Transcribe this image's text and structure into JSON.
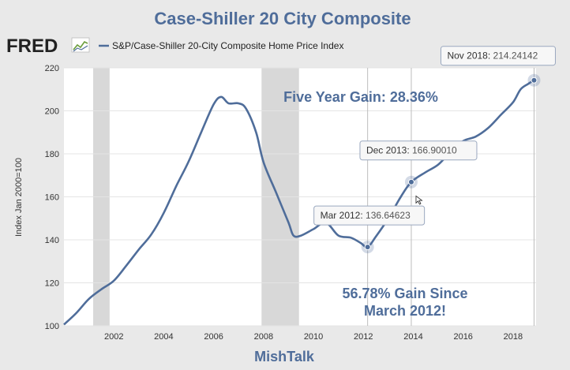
{
  "title": "Case-Shiller 20 City Composite",
  "footer": "MishTalk",
  "logo": "FRED",
  "legend_label": "S&P/Case-Shiller 20-City Composite Home Price Index",
  "ylabel": "Index Jan 2000=100",
  "annotations": {
    "five_year": "Five Year Gain: 28.36%",
    "gain_line1": "56.78% Gain Since",
    "gain_line2": "March 2012!"
  },
  "colors": {
    "line": "#4f6d9a",
    "recession": "#d8d8d8",
    "plot_bg": "#ffffff",
    "page_bg": "#e9e9e9"
  },
  "chart_data": {
    "type": "line",
    "title": "Case-Shiller 20 City Composite",
    "ylabel": "Index Jan 2000=100",
    "xlabel": "",
    "xlim": [
      2000.0,
      2018.92
    ],
    "ylim": [
      100,
      220
    ],
    "x_ticks": [
      2002,
      2004,
      2006,
      2008,
      2010,
      2012,
      2014,
      2016,
      2018
    ],
    "y_ticks": [
      100,
      120,
      140,
      160,
      180,
      200,
      220
    ],
    "grid": "horizontal",
    "legend": "top-left",
    "recessions": [
      [
        2001.17,
        2001.83
      ],
      [
        2007.92,
        2009.42
      ]
    ],
    "series": [
      {
        "name": "S&P/Case-Shiller 20-City Composite Home Price Index",
        "x": [
          2000.0,
          2000.5,
          2001.0,
          2001.5,
          2002.0,
          2002.5,
          2003.0,
          2003.5,
          2004.0,
          2004.5,
          2005.0,
          2005.5,
          2006.0,
          2006.3,
          2006.6,
          2007.0,
          2007.3,
          2007.7,
          2008.0,
          2008.5,
          2009.0,
          2009.2,
          2009.5,
          2010.0,
          2010.5,
          2011.0,
          2011.5,
          2011.9,
          2012.17,
          2012.5,
          2013.0,
          2013.5,
          2013.92,
          2014.5,
          2015.0,
          2015.5,
          2016.0,
          2016.5,
          2017.0,
          2017.5,
          2018.0,
          2018.3,
          2018.6,
          2018.84
        ],
        "values": [
          100.6,
          106,
          112.5,
          117,
          121,
          128,
          135.5,
          142.5,
          152.5,
          165,
          176.5,
          190,
          203,
          206.5,
          203.5,
          203.5,
          201,
          190,
          176,
          162,
          148,
          142,
          142,
          145,
          148,
          142,
          141,
          138.5,
          136.6,
          141.5,
          150,
          160,
          166.9,
          171.5,
          175,
          181,
          186,
          188,
          192,
          198,
          204,
          210,
          212.5,
          214.24
        ]
      }
    ],
    "highlighted_points": [
      {
        "label": "Mar 2012",
        "value_text": "136.64623",
        "x": 2012.17,
        "y": 136.64623
      },
      {
        "label": "Dec 2013",
        "value_text": "166.90010",
        "x": 2013.92,
        "y": 166.9001
      },
      {
        "label": "Nov 2018",
        "value_text": "214.24142",
        "x": 2018.84,
        "y": 214.24142
      }
    ]
  }
}
